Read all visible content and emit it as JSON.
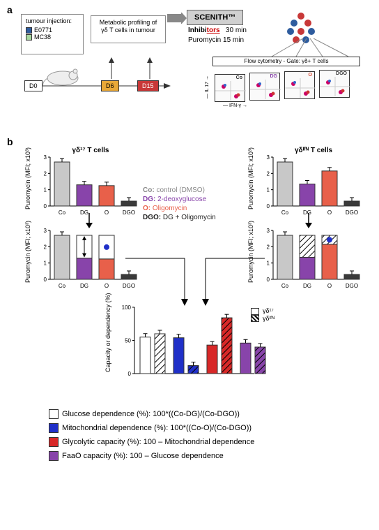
{
  "panelA": {
    "label": "a",
    "inj_title": "tumour injection:",
    "lines": [
      "E0771",
      "MC38"
    ],
    "line_colors": [
      "#2e5c9e",
      "#a8d8a0"
    ],
    "profiling": "Metabolic profiling of γδ T cells in tumour",
    "days": [
      "D0",
      "D6",
      "D15"
    ],
    "day_colors": [
      "#ffffff",
      "#e8a838",
      "#c83838"
    ],
    "scenith": "SCENITH™",
    "inhibitors": "Inhibitors   30 min",
    "puromycin": "Puromycin 15 min",
    "dot_colors": [
      "#c83838",
      "#2e5c9e"
    ],
    "flow_title": "Flow cytometry - Gate: γδ+ T cells",
    "flow_conds": [
      "Co",
      "DG",
      "O",
      "DGO"
    ],
    "flow_cond_colors": [
      "#333",
      "#8844aa",
      "#d84830",
      "#333"
    ],
    "y_ax": "IL 17",
    "x_ax": "IFN-γ"
  },
  "panelB": {
    "label": "b",
    "left_title": "γδ¹⁷ T cells",
    "right_title": "γδᴵᶠᴺ T cells",
    "ylabel": "Puromycin (MFI; x10³)",
    "ymax": 3,
    "ytick": 1,
    "conds": [
      "Co",
      "DG",
      "O",
      "DGO"
    ],
    "bar_colors": [
      "#c8c8c8",
      "#8844aa",
      "#e8604a",
      "#3a3a3a"
    ],
    "gd17_vals": [
      2.7,
      1.3,
      1.25,
      0.3
    ],
    "gdifn_vals": [
      2.7,
      1.35,
      2.15,
      0.3
    ],
    "cond_legend": [
      {
        "code": "Co",
        "text": "control (DMSO)",
        "color": "#888888"
      },
      {
        "code": "DG",
        "text": "2-deoxyglucose",
        "color": "#8844aa"
      },
      {
        "code": "O",
        "text": "Oligomycin",
        "color": "#e8604a"
      },
      {
        "code": "DGO",
        "text": "DG + Oligomycin",
        "color": "#222222"
      }
    ],
    "bottom_chart": {
      "ylabel": "Capacity or dependency (%)",
      "ymax": 100,
      "ytick": 50,
      "legend": [
        "γδ¹⁷",
        "γδᴵᶠᴺ"
      ],
      "pairs": [
        {
          "fill": "#ffffff",
          "gd17": 55,
          "ifn": 60
        },
        {
          "fill": "#2030c8",
          "gd17": 54,
          "ifn": 12
        },
        {
          "fill": "#d82828",
          "gd17": 43,
          "ifn": 84
        },
        {
          "fill": "#8844aa",
          "gd17": 46,
          "ifn": 40
        }
      ]
    },
    "formula_legend": [
      {
        "fill": "#ffffff",
        "text": "Glucose dependence (%): 100*((Co-DG)/(Co-DGO))",
        "spans": [
          {
            "t": "Co",
            "c": "#888"
          },
          {
            "t": "DG",
            "c": "#8844aa"
          },
          {
            "t": "Co",
            "c": "#888"
          },
          {
            "t": "DGO",
            "c": "#222"
          }
        ]
      },
      {
        "fill": "#2030c8",
        "text": "Mitochondrial dependence (%): 100*((Co-O)/(Co-DGO))",
        "spans": [
          {
            "t": "Co",
            "c": "#888"
          },
          {
            "t": "O",
            "c": "#e8604a"
          },
          {
            "t": "Co",
            "c": "#888"
          },
          {
            "t": "DGO",
            "c": "#222"
          }
        ]
      },
      {
        "fill": "#d82828",
        "text": "Glycolytic capacity (%): 100 – Mitochondrial dependence",
        "spans": []
      },
      {
        "fill": "#8844aa",
        "text": "FaaO capacity (%): 100 – Glucose dependence",
        "spans": []
      }
    ]
  }
}
